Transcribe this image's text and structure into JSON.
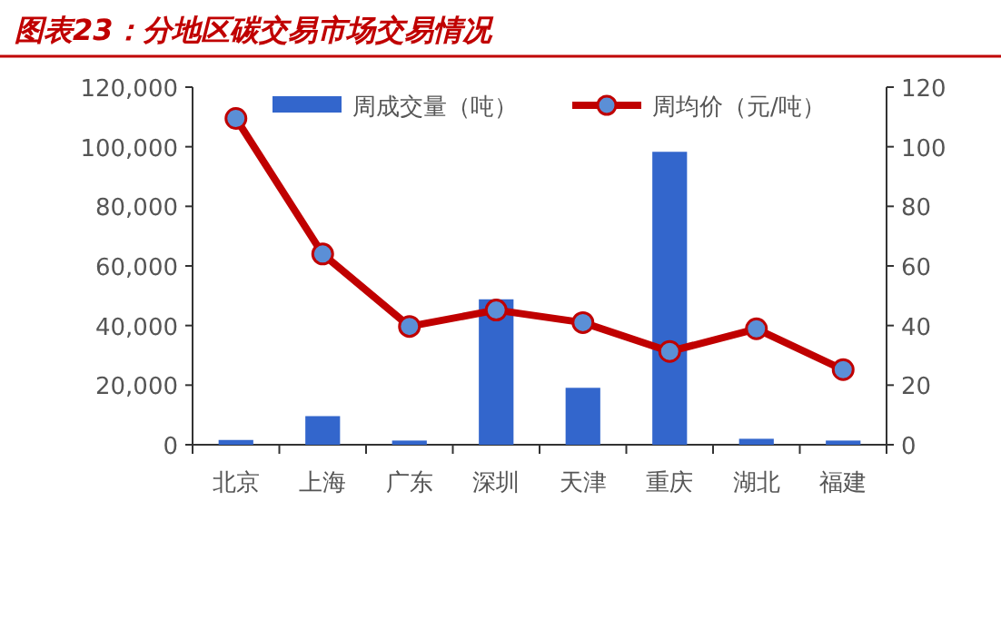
{
  "chart_data": {
    "type": "bar",
    "title": "图表23：分地区碳交易市场交易情况",
    "categories": [
      "北京",
      "上海",
      "广东",
      "深圳",
      "天津",
      "重庆",
      "湖北",
      "福建"
    ],
    "series": [
      {
        "name": "周成交量（吨）",
        "color": "#3366cc",
        "values": [
          1600,
          9600,
          1400,
          48800,
          19100,
          98300,
          2000,
          1400
        ]
      },
      {
        "name": "周均价（元/吨）",
        "type": "line",
        "axis": "y2",
        "color": "#c00000",
        "marker": "circle",
        "values": [
          109.5,
          64,
          39.7,
          45.2,
          41,
          31.3,
          38.9,
          25.2
        ]
      }
    ],
    "ylim": [
      0,
      120000
    ],
    "yticks": [
      0,
      {
        "value": 20000,
        "label": "20,000"
      },
      {
        "value": 40000,
        "label": "40,000"
      },
      {
        "value": 60000,
        "label": "60,000"
      },
      {
        "value": 80000,
        "label": "80,000"
      },
      {
        "value": 100000,
        "label": "100,000"
      },
      {
        "value": 120000,
        "label": "120,000"
      }
    ],
    "y2lim": [
      0,
      120
    ],
    "y2ticks": [
      0,
      20,
      40,
      60,
      80,
      100,
      120
    ],
    "legend": "top",
    "grid": false
  }
}
